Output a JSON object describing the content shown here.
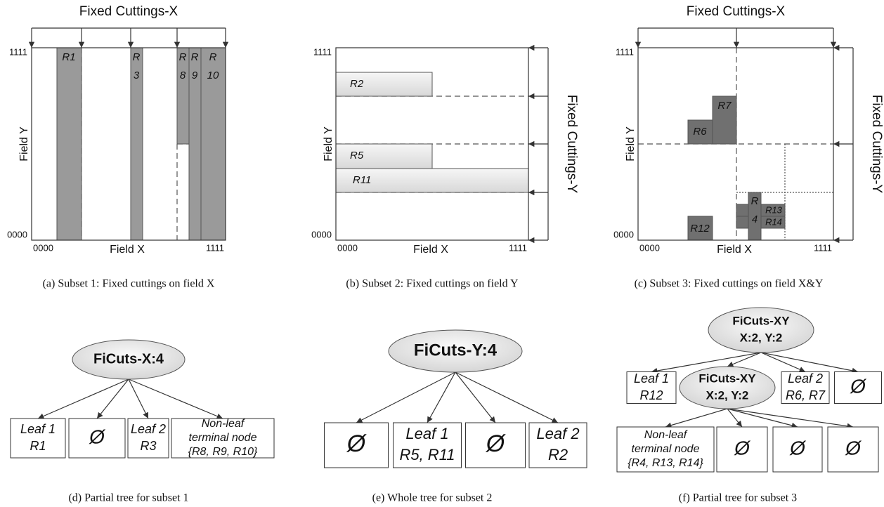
{
  "cutting_panels": [
    {
      "cut_x": "Fixed Cuttings-X",
      "axis_x": "Field X",
      "axis_y": "Field Y",
      "x_start": "0000",
      "x_end": "1111",
      "y_start": "0000",
      "y_end": "1111",
      "rules": [
        {
          "lines": [
            "R1"
          ]
        },
        {
          "lines": [
            "R",
            "3"
          ]
        },
        {
          "lines": [
            "R",
            "8"
          ]
        },
        {
          "lines": [
            "R",
            "9"
          ]
        },
        {
          "lines": [
            "R",
            "10"
          ]
        }
      ],
      "caption": "(a) Subset 1: Fixed cuttings on field X"
    },
    {
      "cut_y": "Fixed Cuttings-Y",
      "axis_x": "Field X",
      "axis_y": "Field Y",
      "x_start": "0000",
      "x_end": "1111",
      "y_start": "0000",
      "y_end": "1111",
      "rules": [
        {
          "lines": [
            "R2"
          ]
        },
        {
          "lines": [
            "R5"
          ]
        },
        {
          "lines": [
            "R11"
          ]
        }
      ],
      "caption": "(b) Subset 2: Fixed cuttings on field Y"
    },
    {
      "cut_x": "Fixed Cuttings-X",
      "cut_y": "Fixed Cuttings-Y",
      "axis_x": "Field X",
      "axis_y": "Field Y",
      "x_start": "0000",
      "x_end": "1111",
      "y_start": "0000",
      "y_end": "1111",
      "rules": [
        {
          "lines": [
            "R7"
          ]
        },
        {
          "lines": [
            "R6"
          ]
        },
        {
          "lines": [
            "R12"
          ]
        },
        {
          "lines": [
            "R13"
          ]
        },
        {
          "lines": [
            "R14"
          ]
        },
        {
          "lines": [
            "R",
            "4"
          ]
        }
      ],
      "caption": "(c) Subset 3: Fixed cuttings on field X&Y"
    }
  ],
  "trees": [
    {
      "root": {
        "lines": [
          "FiCuts-X:4"
        ]
      },
      "children": [
        {
          "lines": [
            "Leaf 1",
            "R1"
          ]
        },
        {
          "lines": [
            "Ø"
          ]
        },
        {
          "lines": [
            "Leaf 2",
            "R3"
          ]
        },
        {
          "lines": [
            "Non-leaf",
            "terminal node",
            "{R8, R9, R10}"
          ]
        }
      ],
      "caption": "(d) Partial tree for subset 1"
    },
    {
      "root": {
        "lines": [
          "FiCuts-Y:4"
        ]
      },
      "children": [
        {
          "lines": [
            "Ø"
          ]
        },
        {
          "lines": [
            "Leaf 1",
            "R5, R11"
          ]
        },
        {
          "lines": [
            "Ø"
          ]
        },
        {
          "lines": [
            "Leaf 2",
            "R2"
          ]
        }
      ],
      "caption": "(e) Whole tree for subset 2"
    },
    {
      "root": {
        "lines": [
          "FiCuts-XY",
          "X:2, Y:2"
        ]
      },
      "children": [
        {
          "lines": [
            "Leaf 1",
            "R12"
          ]
        },
        {
          "lines": [
            "FiCuts-XY",
            "X:2, Y:2"
          ],
          "children": [
            {
              "lines": [
                "Non-leaf",
                "terminal node",
                "{R4, R13, R14}"
              ]
            },
            {
              "lines": [
                "Ø"
              ]
            },
            {
              "lines": [
                "Ø"
              ]
            },
            {
              "lines": [
                "Ø"
              ]
            }
          ]
        },
        {
          "lines": [
            "Leaf 2",
            "R6, R7"
          ]
        },
        {
          "lines": [
            "Ø"
          ]
        }
      ],
      "caption": "(f) Partial tree for subset 3"
    }
  ]
}
